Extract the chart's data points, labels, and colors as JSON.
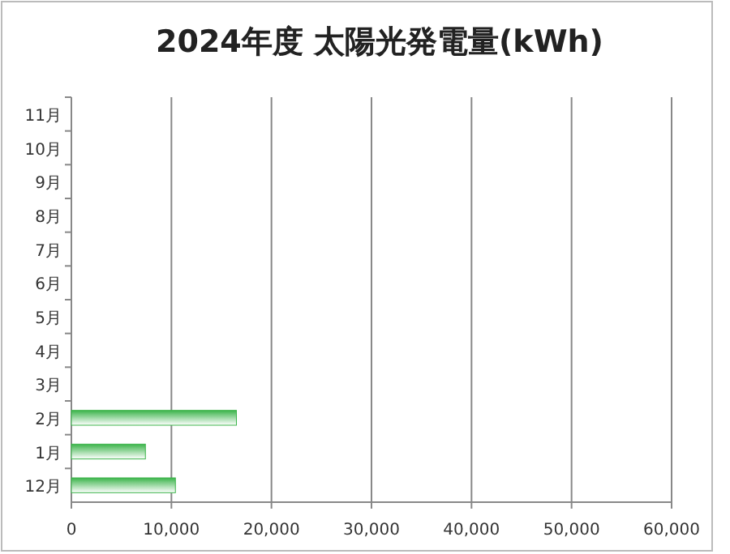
{
  "chart_data": {
    "type": "bar",
    "orientation": "horizontal",
    "title": "2024年度 太陽光発電量(kWh)",
    "categories": [
      "11月",
      "10月",
      "9月",
      "8月",
      "7月",
      "6月",
      "5月",
      "4月",
      "3月",
      "2月",
      "1月",
      "12月"
    ],
    "values": [
      null,
      null,
      null,
      null,
      null,
      null,
      null,
      null,
      null,
      16500,
      7400,
      10400
    ],
    "color": "#3cb44b",
    "xlim": [
      0,
      60000
    ],
    "xticks": [
      {
        "value": 0,
        "label": "0"
      },
      {
        "value": 10000,
        "label": "10,000"
      },
      {
        "value": 20000,
        "label": "20,000"
      },
      {
        "value": 30000,
        "label": "30,000"
      },
      {
        "value": 40000,
        "label": "40,000"
      },
      {
        "value": 50000,
        "label": "50,000"
      },
      {
        "value": 60000,
        "label": "60,000"
      }
    ],
    "grid": "x"
  }
}
